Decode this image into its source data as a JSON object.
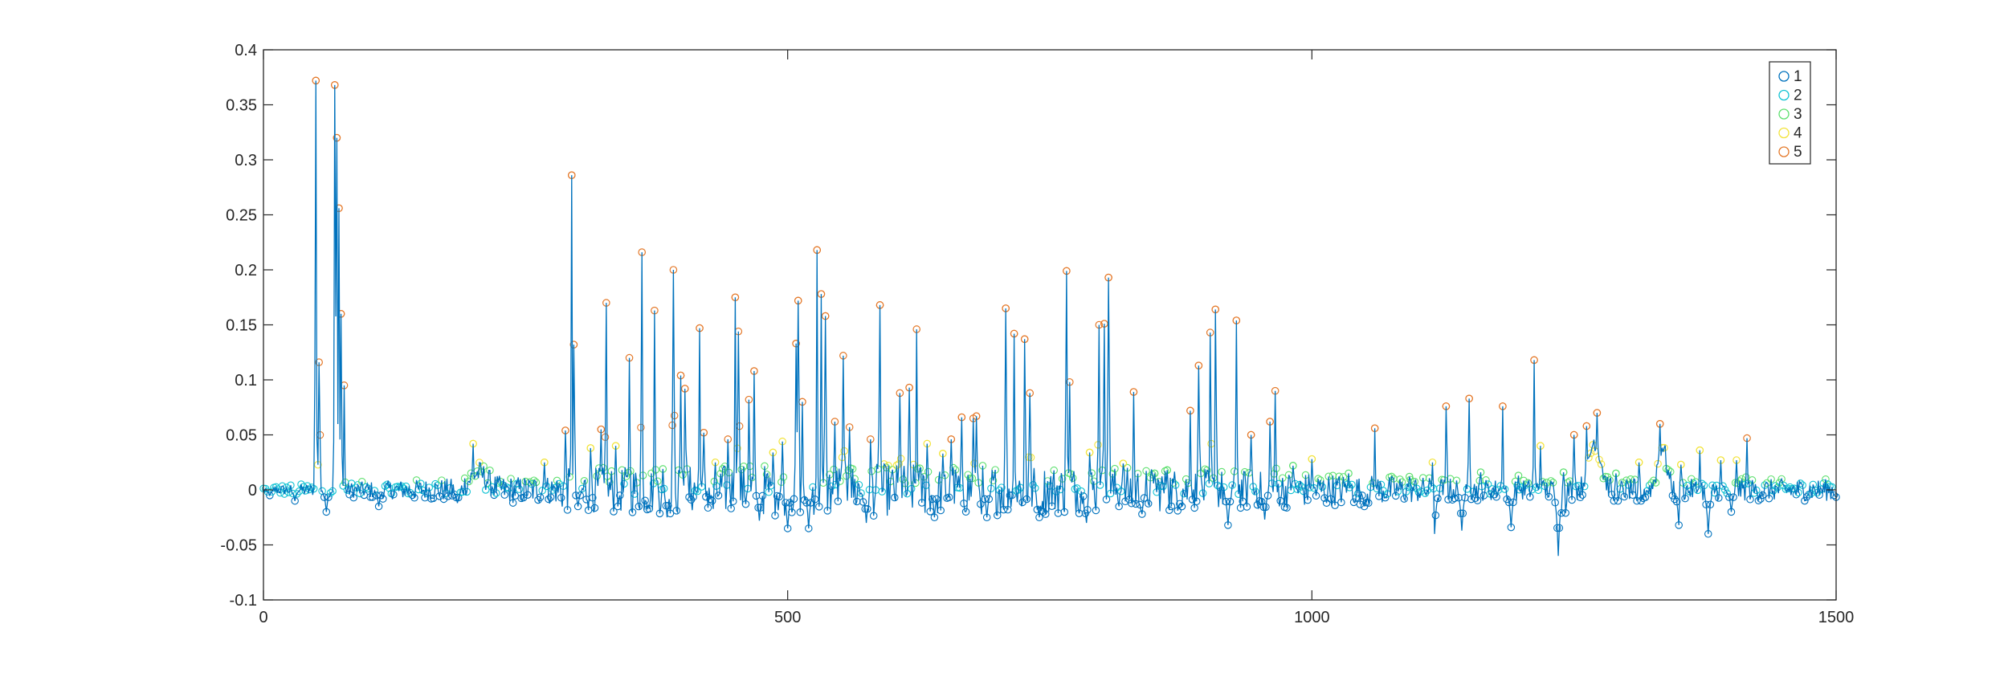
{
  "chart_data": {
    "type": "scatter",
    "title": "",
    "xlabel": "",
    "ylabel": "",
    "xlim": [
      0,
      1500
    ],
    "ylim": [
      -0.1,
      0.4
    ],
    "x_ticks": [
      0,
      500,
      1000,
      1500
    ],
    "x_tick_labels": [
      "0",
      "500",
      "1000",
      "1500"
    ],
    "y_ticks": [
      -0.1,
      -0.05,
      0,
      0.05,
      0.1,
      0.15,
      0.2,
      0.25,
      0.3,
      0.35,
      0.4
    ],
    "y_tick_labels": [
      "-0.1",
      "-0.05",
      "0",
      "0.05",
      "0.1",
      "0.15",
      "0.2",
      "0.25",
      "0.3",
      "0.35",
      "0.4"
    ],
    "grid": false,
    "legend_position": "top-right",
    "line_color": "#0072BD",
    "marker": "open-circle",
    "series": [
      {
        "name": "1",
        "color": "#0072BD"
      },
      {
        "name": "2",
        "color": "#12C3D3"
      },
      {
        "name": "3",
        "color": "#5EE06F"
      },
      {
        "name": "4",
        "color": "#F2E33A"
      },
      {
        "name": "5",
        "color": "#E4792A"
      }
    ],
    "peaks": [
      [
        50,
        0.372
      ],
      [
        53,
        0.116
      ],
      [
        68,
        0.368
      ],
      [
        70,
        0.32
      ],
      [
        72,
        0.256
      ],
      [
        74,
        0.16
      ],
      [
        77,
        0.095
      ],
      [
        200,
        0.042
      ],
      [
        268,
        0.025
      ],
      [
        288,
        0.054
      ],
      [
        294,
        0.286
      ],
      [
        296,
        0.132
      ],
      [
        312,
        0.038
      ],
      [
        322,
        0.055
      ],
      [
        327,
        0.17
      ],
      [
        336,
        0.04
      ],
      [
        349,
        0.12
      ],
      [
        361,
        0.216
      ],
      [
        373,
        0.163
      ],
      [
        381,
        0.019
      ],
      [
        391,
        0.2
      ],
      [
        398,
        0.104
      ],
      [
        402,
        0.092
      ],
      [
        416,
        0.147
      ],
      [
        420,
        0.052
      ],
      [
        431,
        0.025
      ],
      [
        443,
        0.046
      ],
      [
        450,
        0.175
      ],
      [
        453,
        0.144
      ],
      [
        463,
        0.082
      ],
      [
        468,
        0.108
      ],
      [
        486,
        0.034
      ],
      [
        495,
        0.044
      ],
      [
        508,
        0.133
      ],
      [
        510,
        0.172
      ],
      [
        514,
        0.08
      ],
      [
        528,
        0.218
      ],
      [
        532,
        0.178
      ],
      [
        536,
        0.158
      ],
      [
        545,
        0.062
      ],
      [
        553,
        0.122
      ],
      [
        559,
        0.057
      ],
      [
        579,
        0.046
      ],
      [
        588,
        0.168
      ],
      [
        607,
        0.088
      ],
      [
        616,
        0.093
      ],
      [
        623,
        0.146
      ],
      [
        633,
        0.042
      ],
      [
        648,
        0.033
      ],
      [
        656,
        0.046
      ],
      [
        666,
        0.066
      ],
      [
        677,
        0.065
      ],
      [
        680,
        0.067
      ],
      [
        708,
        0.165
      ],
      [
        716,
        0.142
      ],
      [
        726,
        0.137
      ],
      [
        731,
        0.088
      ],
      [
        766,
        0.199
      ],
      [
        769,
        0.098
      ],
      [
        788,
        0.034
      ],
      [
        797,
        0.15
      ],
      [
        802,
        0.151
      ],
      [
        806,
        0.193
      ],
      [
        820,
        0.024
      ],
      [
        830,
        0.089
      ],
      [
        850,
        0.015
      ],
      [
        862,
        0.018
      ],
      [
        884,
        0.072
      ],
      [
        892,
        0.113
      ],
      [
        903,
        0.143
      ],
      [
        908,
        0.164
      ],
      [
        928,
        0.154
      ],
      [
        942,
        0.05
      ],
      [
        960,
        0.062
      ],
      [
        965,
        0.09
      ],
      [
        982,
        0.022
      ],
      [
        1000,
        0.028
      ],
      [
        1035,
        0.015
      ],
      [
        1060,
        0.056
      ],
      [
        1093,
        0.012
      ],
      [
        1115,
        0.025
      ],
      [
        1128,
        0.076
      ],
      [
        1150,
        0.083
      ],
      [
        1161,
        0.016
      ],
      [
        1182,
        0.076
      ],
      [
        1197,
        0.013
      ],
      [
        1212,
        0.118
      ],
      [
        1218,
        0.04
      ],
      [
        1240,
        0.016
      ],
      [
        1250,
        0.05
      ],
      [
        1262,
        0.058
      ],
      [
        1272,
        0.07
      ],
      [
        1290,
        0.015
      ],
      [
        1312,
        0.025
      ],
      [
        1332,
        0.06
      ],
      [
        1352,
        0.023
      ],
      [
        1370,
        0.036
      ],
      [
        1390,
        0.027
      ],
      [
        1405,
        0.027
      ],
      [
        1415,
        0.047
      ]
    ],
    "dips": [
      [
        6,
        -0.005
      ],
      [
        30,
        -0.01
      ],
      [
        60,
        -0.02
      ],
      [
        110,
        -0.015
      ],
      [
        185,
        -0.012
      ],
      [
        300,
        -0.015
      ],
      [
        338,
        -0.015
      ],
      [
        385,
        -0.025
      ],
      [
        430,
        -0.03
      ],
      [
        473,
        -0.028
      ],
      [
        500,
        -0.035
      ],
      [
        520,
        -0.035
      ],
      [
        575,
        -0.03
      ],
      [
        640,
        -0.025
      ],
      [
        690,
        -0.025
      ],
      [
        740,
        -0.025
      ],
      [
        785,
        -0.03
      ],
      [
        838,
        -0.022
      ],
      [
        920,
        -0.032
      ],
      [
        955,
        -0.027
      ],
      [
        1050,
        -0.015
      ],
      [
        1117,
        -0.04
      ],
      [
        1143,
        -0.037
      ],
      [
        1190,
        -0.034
      ],
      [
        1235,
        -0.06
      ],
      [
        1240,
        -0.063
      ],
      [
        1290,
        -0.03
      ],
      [
        1312,
        -0.03
      ],
      [
        1350,
        -0.032
      ],
      [
        1378,
        -0.04
      ],
      [
        1400,
        -0.02
      ]
    ]
  }
}
